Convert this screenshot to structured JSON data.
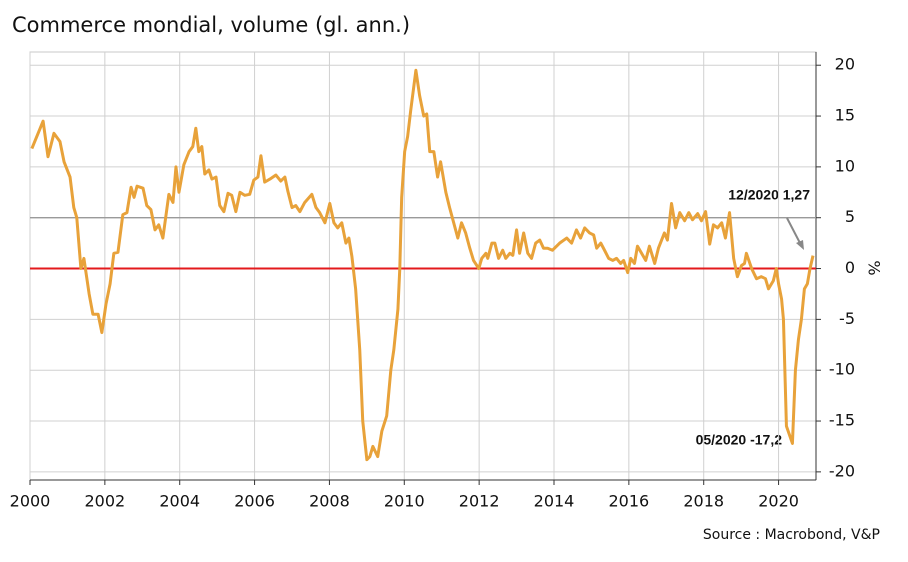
{
  "chart_data": {
    "type": "line",
    "title": "Commerce mondial, volume (gl. ann.)",
    "y_label": "%",
    "source": "Source : Macrobond, V&P",
    "annotations": [
      "12/2020 1,27",
      "05/2020 -17,2"
    ],
    "xlim": [
      2000,
      2021
    ],
    "xticks": [
      2000,
      2002,
      2004,
      2006,
      2008,
      2010,
      2012,
      2014,
      2016,
      2018,
      2020
    ],
    "ylim": [
      -20.8,
      21.3
    ],
    "yticks": [
      -20,
      -15,
      -10,
      -5,
      0,
      5,
      10,
      15,
      20
    ],
    "grid": true,
    "reference_lines": [
      {
        "value": 0,
        "color": "#e31a1c"
      },
      {
        "value": 5,
        "color": "#9a9a9a"
      }
    ],
    "series": [
      {
        "name": "Commerce mondial",
        "color": "#e8a23a",
        "x": [
          2000.05,
          2000.35,
          2000.48,
          2000.64,
          2000.8,
          2000.91,
          2001.07,
          2001.17,
          2001.25,
          2001.36,
          2001.44,
          2001.58,
          2001.68,
          2001.82,
          2001.92,
          2002.03,
          2002.14,
          2002.24,
          2002.35,
          2002.48,
          2002.59,
          2002.7,
          2002.78,
          2002.86,
          2003.02,
          2003.12,
          2003.23,
          2003.34,
          2003.44,
          2003.55,
          2003.71,
          2003.82,
          2003.9,
          2003.98,
          2004.11,
          2004.25,
          2004.35,
          2004.43,
          2004.51,
          2004.59,
          2004.67,
          2004.78,
          2004.86,
          2004.97,
          2005.07,
          2005.18,
          2005.29,
          2005.39,
          2005.5,
          2005.61,
          2005.74,
          2005.87,
          2005.98,
          2006.09,
          2006.17,
          2006.27,
          2006.41,
          2006.57,
          2006.7,
          2006.81,
          2006.89,
          2007.0,
          2007.1,
          2007.21,
          2007.34,
          2007.53,
          2007.64,
          2007.74,
          2007.88,
          2008.01,
          2008.12,
          2008.22,
          2008.33,
          2008.44,
          2008.52,
          2008.6,
          2008.7,
          2008.81,
          2008.89,
          2009.0,
          2009.08,
          2009.16,
          2009.29,
          2009.4,
          2009.53,
          2009.64,
          2009.72,
          2009.83,
          2009.88,
          2009.93,
          2010.01,
          2010.09,
          2010.17,
          2010.31,
          2010.41,
          2010.52,
          2010.6,
          2010.68,
          2010.79,
          2010.89,
          2010.97,
          2011.11,
          2011.21,
          2011.32,
          2011.43,
          2011.53,
          2011.64,
          2011.75,
          2011.85,
          2011.99,
          2012.07,
          2012.18,
          2012.23,
          2012.34,
          2012.42,
          2012.52,
          2012.63,
          2012.71,
          2012.82,
          2012.9,
          2013.0,
          2013.08,
          2013.19,
          2013.3,
          2013.4,
          2013.51,
          2013.62,
          2013.72,
          2013.83,
          2013.96,
          2014.15,
          2014.34,
          2014.47,
          2014.6,
          2014.71,
          2014.82,
          2014.95,
          2015.06,
          2015.14,
          2015.25,
          2015.35,
          2015.46,
          2015.57,
          2015.67,
          2015.78,
          2015.86,
          2015.97,
          2016.05,
          2016.15,
          2016.23,
          2016.34,
          2016.45,
          2016.55,
          2016.69,
          2016.79,
          2016.95,
          2017.03,
          2017.14,
          2017.25,
          2017.36,
          2017.49,
          2017.6,
          2017.7,
          2017.84,
          2017.94,
          2018.05,
          2018.16,
          2018.26,
          2018.37,
          2018.48,
          2018.58,
          2018.69,
          2018.8,
          2018.9,
          2019.01,
          2019.09,
          2019.14,
          2019.28,
          2019.41,
          2019.54,
          2019.65,
          2019.73,
          2019.86,
          2019.94,
          2020.0,
          2020.08,
          2020.13,
          2020.21,
          2020.37,
          2020.45,
          2020.53,
          2020.61,
          2020.69,
          2020.77,
          2020.84,
          2020.92
        ],
        "values": [
          11.8,
          14.5,
          11,
          13.3,
          12.5,
          10.5,
          9,
          6,
          5,
          0,
          1,
          -2.5,
          -4.5,
          -4.5,
          -6.3,
          -3.5,
          -1.5,
          1.5,
          1.6,
          5.3,
          5.5,
          8,
          7,
          8.1,
          7.9,
          6.2,
          5.8,
          3.8,
          4.3,
          3,
          7.3,
          6.5,
          10,
          7.5,
          10.2,
          11.5,
          12,
          13.8,
          11.5,
          12,
          9.3,
          9.7,
          8.8,
          9,
          6.2,
          5.6,
          7.4,
          7.2,
          5.6,
          7.5,
          7.2,
          7.3,
          8.7,
          9,
          11.1,
          8.5,
          8.8,
          9.2,
          8.6,
          9,
          7.6,
          6,
          6.2,
          5.6,
          6.5,
          7.3,
          6,
          5.5,
          4.5,
          6.4,
          4.5,
          4,
          4.5,
          2.5,
          3,
          1.2,
          -2,
          -8,
          -15,
          -18.8,
          -18.5,
          -17.5,
          -18.5,
          -16,
          -14.5,
          -10,
          -8,
          -4,
          0,
          7,
          11.5,
          13,
          15.5,
          19.5,
          17,
          15,
          15.2,
          11.5,
          11.5,
          9,
          10.5,
          7.5,
          6,
          4.5,
          3,
          4.5,
          3.5,
          2,
          0.8,
          0,
          1,
          1.5,
          1,
          2.5,
          2.5,
          1,
          1.8,
          1,
          1.5,
          1.3,
          3.8,
          1.5,
          3.5,
          1.5,
          1,
          2.5,
          2.8,
          2,
          2,
          1.8,
          2.5,
          3,
          2.5,
          3.8,
          3,
          4,
          3.5,
          3.3,
          2,
          2.5,
          1.8,
          1,
          0.8,
          1,
          0.5,
          0.8,
          -0.4,
          1,
          0.5,
          2.2,
          1.5,
          0.8,
          2.2,
          0.5,
          2,
          3.5,
          2.8,
          6.4,
          4,
          5.5,
          4.7,
          5.5,
          4.8,
          5.4,
          4.7,
          5.6,
          2.4,
          4.3,
          4,
          4.5,
          3,
          5.5,
          1,
          -0.8,
          0.3,
          0.5,
          1.5,
          0,
          -1,
          -0.8,
          -1,
          -2,
          -1.2,
          0,
          -1.5,
          -3,
          -5,
          -15.5,
          -17.2,
          -10,
          -7,
          -5,
          -2,
          -1.5,
          0,
          1.27
        ]
      }
    ]
  }
}
